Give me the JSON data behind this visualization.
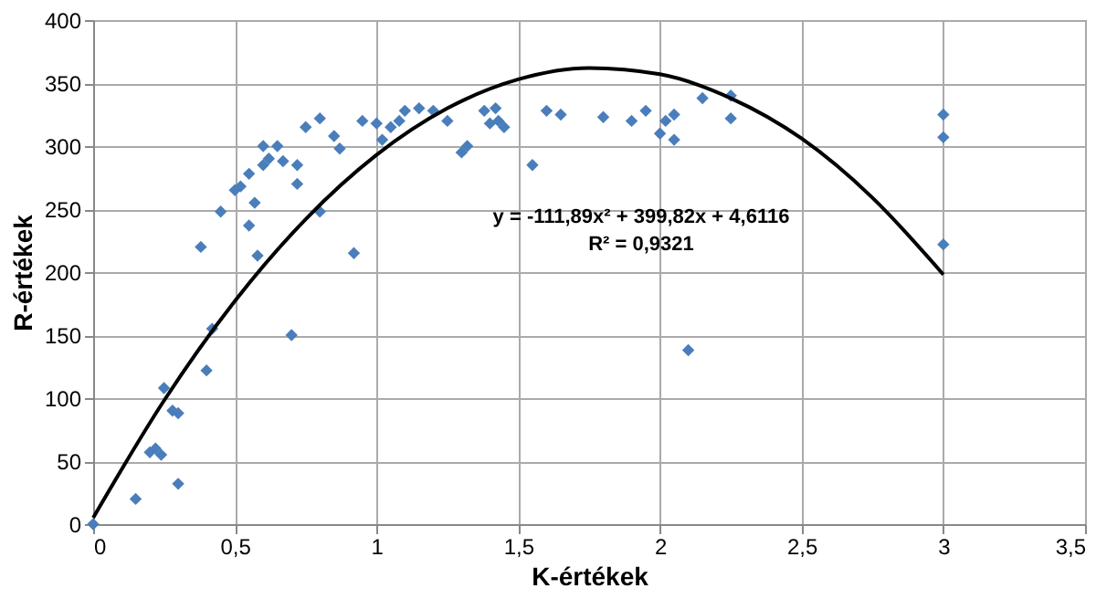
{
  "chart_data": {
    "type": "scatter",
    "xlabel": "K-értékek",
    "ylabel": "R-értékek",
    "xlim": [
      0,
      3.5
    ],
    "xticks": [
      {
        "value": 0,
        "label": "0"
      },
      {
        "value": 0.5,
        "label": "0,5"
      },
      {
        "value": 1,
        "label": "1"
      },
      {
        "value": 1.5,
        "label": "1,5"
      },
      {
        "value": 2,
        "label": "2"
      },
      {
        "value": 2.5,
        "label": "2,5"
      },
      {
        "value": 3,
        "label": "3"
      },
      {
        "value": 3.5,
        "label": "3,5"
      }
    ],
    "ylim": [
      0,
      400
    ],
    "yticks": [
      0,
      50,
      100,
      150,
      200,
      250,
      300,
      350,
      400
    ],
    "grid": true,
    "series": [
      {
        "color": "#4a7ebb",
        "marker": "diamond",
        "x": [
          0,
          0.15,
          0.2,
          0.22,
          0.24,
          0.25,
          0.28,
          0.3,
          0.3,
          0.38,
          0.4,
          0.42,
          0.45,
          0.5,
          0.52,
          0.55,
          0.55,
          0.57,
          0.58,
          0.6,
          0.6,
          0.62,
          0.65,
          0.67,
          0.7,
          0.72,
          0.72,
          0.75,
          0.8,
          0.8,
          0.85,
          0.87,
          0.92,
          0.95,
          1.0,
          1.02,
          1.05,
          1.08,
          1.1,
          1.15,
          1.2,
          1.25,
          1.3,
          1.32,
          1.38,
          1.4,
          1.42,
          1.43,
          1.45,
          1.55,
          1.6,
          1.65,
          1.8,
          1.9,
          1.95,
          2.0,
          2.02,
          2.05,
          2.05,
          2.1,
          2.15,
          2.25,
          2.25,
          3,
          3,
          3
        ],
        "values": [
          0,
          20,
          57,
          60,
          55,
          108,
          90,
          32,
          88,
          220,
          122,
          155,
          248,
          265,
          268,
          278,
          237,
          255,
          213,
          285,
          300,
          290,
          300,
          288,
          150,
          270,
          285,
          315,
          322,
          248,
          308,
          298,
          215,
          320,
          318,
          305,
          315,
          320,
          328,
          330,
          328,
          320,
          295,
          300,
          328,
          318,
          330,
          320,
          315,
          285,
          328,
          325,
          323,
          320,
          328,
          310,
          320,
          325,
          305,
          138,
          338,
          340,
          322,
          325,
          307,
          222
        ]
      },
      {
        "type": "line",
        "line_style": "solid",
        "color": "#000000",
        "x": [
          0,
          0.25,
          0.5,
          0.75,
          1,
          1.25,
          1.5,
          1.75,
          2,
          2.25,
          2.5,
          2.75,
          3
        ],
        "values": [
          5,
          98,
          177,
          242,
          293,
          330,
          353,
          362,
          357,
          338,
          306,
          259,
          198
        ]
      }
    ],
    "annotations": [
      "y = -111,89x² + 399,82x + 4,6116",
      "R² = 0,9321"
    ]
  }
}
